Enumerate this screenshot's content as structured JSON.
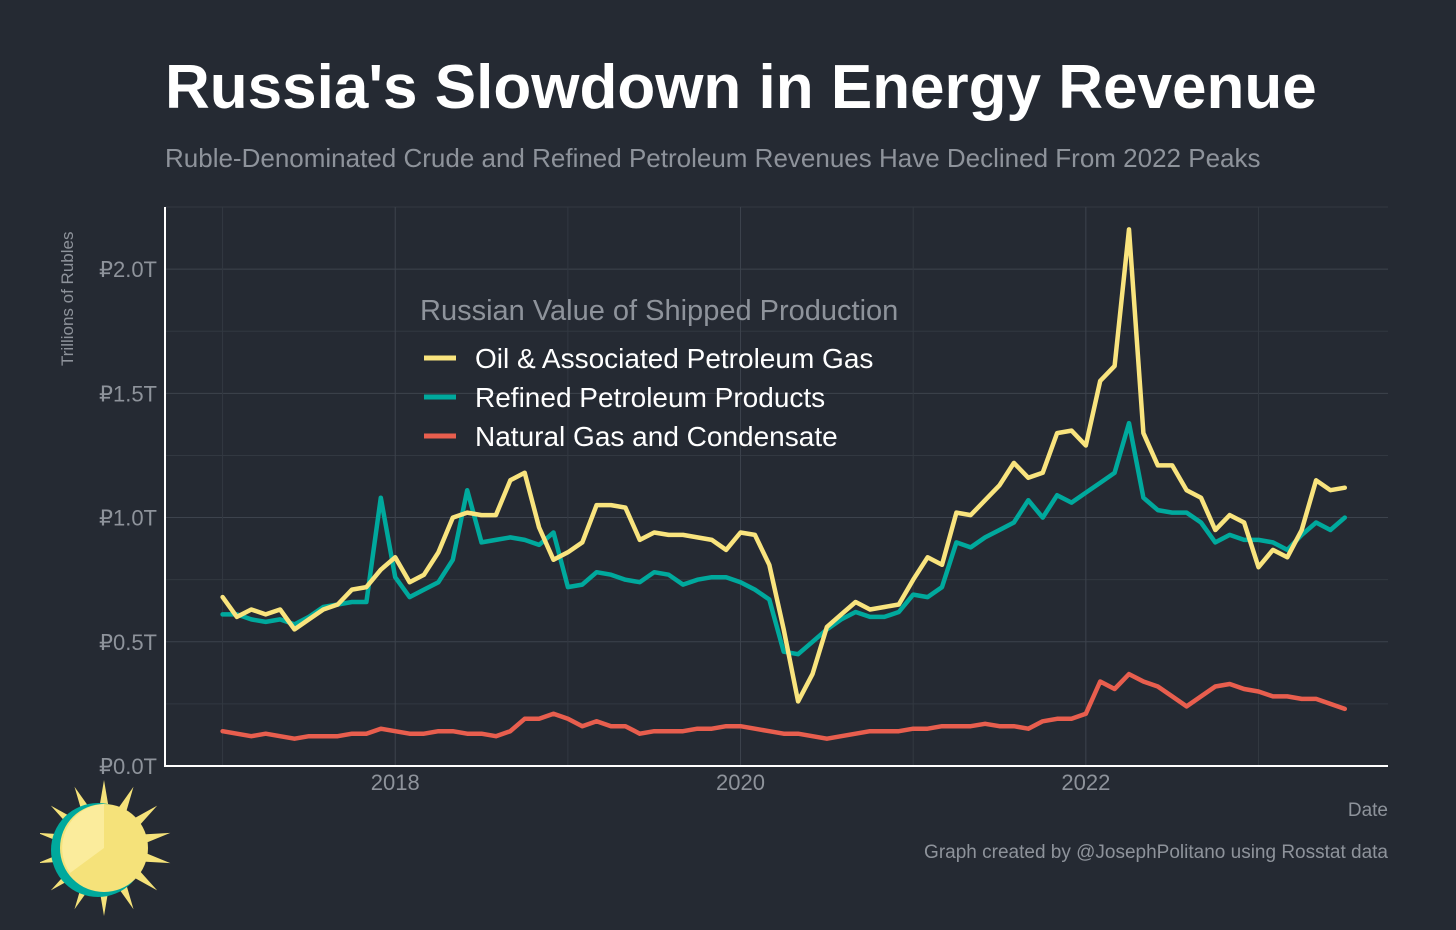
{
  "header": {
    "title": "Russia's Slowdown in Energy Revenue",
    "subtitle": "Ruble-Denominated Crude and Refined Petroleum Revenues Have Declined From 2022 Peaks"
  },
  "footer": {
    "caption": "Graph created by @JosephPolitano using Rosstat data"
  },
  "logo": {
    "icon": "sun-icon"
  },
  "chart_data": {
    "type": "line",
    "xlabel": "Date",
    "ylabel": "Trillions of Rubles",
    "x_start": "2017-01",
    "x_frequency": "monthly",
    "xlim": [
      "2016-09",
      "2023-10"
    ],
    "ylim": [
      0,
      2.25
    ],
    "x_ticks": [
      {
        "value": "2018-01",
        "label": "2018"
      },
      {
        "value": "2020-01",
        "label": "2020"
      },
      {
        "value": "2022-01",
        "label": "2022"
      }
    ],
    "y_ticks": [
      {
        "value": 0,
        "label": "₽0.0T"
      },
      {
        "value": 0.5,
        "label": "₽0.5T"
      },
      {
        "value": 1.0,
        "label": "₽1.0T"
      },
      {
        "value": 1.5,
        "label": "₽1.5T"
      },
      {
        "value": 2.0,
        "label": "₽2.0T"
      }
    ],
    "grid": true,
    "legend": {
      "title": "Russian Value of Shipped Production",
      "placement": "top-left"
    },
    "series": [
      {
        "name": "Oil & Associated Petroleum Gas",
        "color": "#f9e47e",
        "values": [
          0.68,
          0.6,
          0.63,
          0.61,
          0.63,
          0.55,
          0.59,
          0.63,
          0.65,
          0.71,
          0.72,
          0.79,
          0.84,
          0.74,
          0.77,
          0.86,
          1.0,
          1.02,
          1.01,
          1.01,
          1.15,
          1.18,
          0.96,
          0.83,
          0.86,
          0.9,
          1.05,
          1.05,
          1.04,
          0.91,
          0.94,
          0.93,
          0.93,
          0.92,
          0.91,
          0.87,
          0.94,
          0.93,
          0.81,
          0.55,
          0.26,
          0.37,
          0.56,
          0.61,
          0.66,
          0.63,
          0.64,
          0.65,
          0.75,
          0.84,
          0.81,
          1.02,
          1.01,
          1.07,
          1.13,
          1.22,
          1.16,
          1.18,
          1.34,
          1.35,
          1.29,
          1.55,
          1.61,
          2.16,
          1.34,
          1.21,
          1.21,
          1.11,
          1.08,
          0.95,
          1.01,
          0.98,
          0.8,
          0.87,
          0.84,
          0.95,
          1.15,
          1.11,
          1.12
        ]
      },
      {
        "name": "Refined Petroleum Products",
        "color": "#00a99d",
        "values": [
          0.61,
          0.61,
          0.59,
          0.58,
          0.59,
          0.57,
          0.6,
          0.64,
          0.65,
          0.66,
          0.66,
          1.08,
          0.76,
          0.68,
          0.71,
          0.74,
          0.83,
          1.11,
          0.9,
          0.91,
          0.92,
          0.91,
          0.89,
          0.94,
          0.72,
          0.73,
          0.78,
          0.77,
          0.75,
          0.74,
          0.78,
          0.77,
          0.73,
          0.75,
          0.76,
          0.76,
          0.74,
          0.71,
          0.67,
          0.46,
          0.45,
          0.5,
          0.55,
          0.59,
          0.62,
          0.6,
          0.6,
          0.62,
          0.69,
          0.68,
          0.72,
          0.9,
          0.88,
          0.92,
          0.95,
          0.98,
          1.07,
          1.0,
          1.09,
          1.06,
          1.1,
          1.14,
          1.18,
          1.38,
          1.08,
          1.03,
          1.02,
          1.02,
          0.98,
          0.9,
          0.93,
          0.91,
          0.91,
          0.9,
          0.87,
          0.93,
          0.98,
          0.95,
          1.0
        ]
      },
      {
        "name": "Natural Gas and Condensate",
        "color": "#e85e4e",
        "values": [
          0.14,
          0.13,
          0.12,
          0.13,
          0.12,
          0.11,
          0.12,
          0.12,
          0.12,
          0.13,
          0.13,
          0.15,
          0.14,
          0.13,
          0.13,
          0.14,
          0.14,
          0.13,
          0.13,
          0.12,
          0.14,
          0.19,
          0.19,
          0.21,
          0.19,
          0.16,
          0.18,
          0.16,
          0.16,
          0.13,
          0.14,
          0.14,
          0.14,
          0.15,
          0.15,
          0.16,
          0.16,
          0.15,
          0.14,
          0.13,
          0.13,
          0.12,
          0.11,
          0.12,
          0.13,
          0.14,
          0.14,
          0.14,
          0.15,
          0.15,
          0.16,
          0.16,
          0.16,
          0.17,
          0.16,
          0.16,
          0.15,
          0.18,
          0.19,
          0.19,
          0.21,
          0.34,
          0.31,
          0.37,
          0.34,
          0.32,
          0.28,
          0.24,
          0.28,
          0.32,
          0.33,
          0.31,
          0.3,
          0.28,
          0.28,
          0.27,
          0.27,
          0.25,
          0.23
        ]
      }
    ]
  }
}
